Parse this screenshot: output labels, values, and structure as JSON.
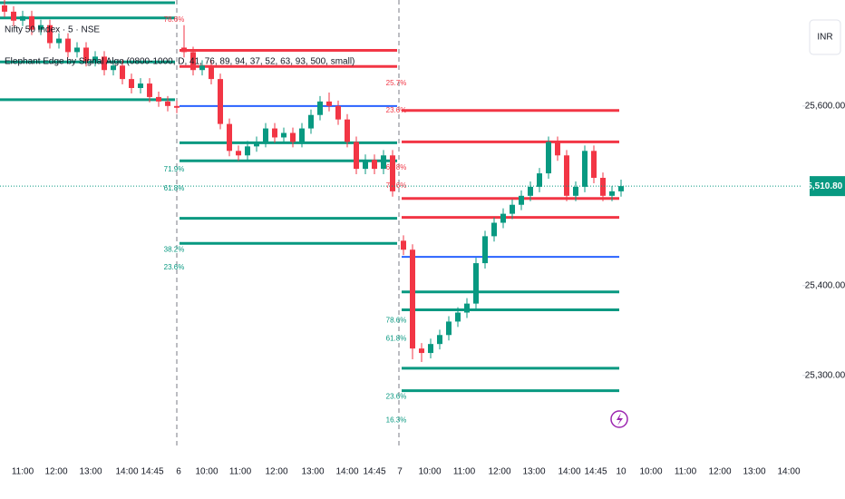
{
  "chart_data": {
    "type": "candlestick",
    "title": "Nifty 50 Index · 5 · NSE",
    "subtitle": "Elephant Edge by Signal Algo (0800-1000, D, 41, 76, 89, 94, 37, 52, 63, 93, 500, small)",
    "currency": "INR",
    "ylim": [
      25218,
      25718
    ],
    "yticks": [
      {
        "value": 25600,
        "label": "25,600.00"
      },
      {
        "value": 25400,
        "label": "25,400.00"
      },
      {
        "value": 25300,
        "label": "25,300.00"
      }
    ],
    "last_price": {
      "value": 25510.8,
      "label": "25,510.80"
    },
    "xticks": [
      "11:00",
      "12:00",
      "13:00",
      "14:00",
      "14:45",
      "6",
      "10:00",
      "11:00",
      "12:00",
      "13:00",
      "14:00",
      "14:45",
      "7",
      "10:00",
      "11:00",
      "12:00",
      "13:00",
      "14:00",
      "14:45",
      "10",
      "10:00",
      "11:00",
      "12:00",
      "13:00",
      "14:00"
    ],
    "colors": {
      "up": "#089981",
      "down": "#f23645",
      "red": "#f23645",
      "green": "#089981",
      "blue": "#2962ff"
    },
    "candles": [
      [
        [
          25712,
          25718,
          25699,
          25705
        ],
        [
          25705,
          25711,
          25689,
          25695
        ],
        [
          25695,
          25706,
          25689,
          25700
        ],
        [
          25700,
          25706,
          25679,
          25685
        ],
        [
          25685,
          25696,
          25679,
          25690
        ],
        [
          25690,
          25696,
          25664,
          25670
        ],
        [
          25670,
          25681,
          25664,
          25675
        ],
        [
          25675,
          25681,
          25654,
          25660
        ],
        [
          25660,
          25671,
          25654,
          25665
        ],
        [
          25665,
          25671,
          25644,
          25650
        ],
        [
          25650,
          25661,
          25644,
          25655
        ],
        [
          25655,
          25661,
          25634,
          25640
        ],
        [
          25640,
          25651,
          25634,
          25645
        ],
        [
          25645,
          25651,
          25624,
          25630
        ],
        [
          25630,
          25636,
          25614,
          25620
        ],
        [
          25620,
          25631,
          25614,
          25625
        ],
        [
          25625,
          25631,
          25604,
          25610
        ],
        [
          25610,
          25616,
          25599,
          25605
        ],
        [
          25605,
          25611,
          25594,
          25600
        ],
        [
          25600,
          25606,
          25592,
          25598
        ]
      ],
      [
        [
          25665,
          25690,
          25654,
          25660
        ],
        [
          25660,
          25666,
          25634,
          25640
        ],
        [
          25640,
          25651,
          25634,
          25645
        ],
        [
          25645,
          25651,
          25624,
          25630
        ],
        [
          25630,
          25636,
          25574,
          25580
        ],
        [
          25580,
          25586,
          25544,
          25550
        ],
        [
          25550,
          25556,
          25539,
          25545
        ],
        [
          25545,
          25561,
          25539,
          25555
        ],
        [
          25555,
          25566,
          25549,
          25560
        ],
        [
          25560,
          25581,
          25554,
          25575
        ],
        [
          25575,
          25581,
          25559,
          25565
        ],
        [
          25565,
          25576,
          25559,
          25570
        ],
        [
          25570,
          25576,
          25554,
          25560
        ],
        [
          25560,
          25581,
          25554,
          25575
        ],
        [
          25575,
          25596,
          25569,
          25590
        ],
        [
          25590,
          25611,
          25584,
          25605
        ],
        [
          25605,
          25615,
          25594,
          25600
        ],
        [
          25600,
          25606,
          25579,
          25585
        ],
        [
          25585,
          25591,
          25554,
          25560
        ],
        [
          25560,
          25566,
          25524,
          25530
        ],
        [
          25530,
          25546,
          25524,
          25540
        ],
        [
          25540,
          25546,
          25524,
          25530
        ],
        [
          25530,
          25551,
          25524,
          25545
        ],
        [
          25545,
          25551,
          25499,
          25505
        ]
      ],
      [
        [
          25450,
          25456,
          25434,
          25440
        ],
        [
          25440,
          25446,
          25318,
          25330
        ],
        [
          25330,
          25336,
          25315,
          25325
        ],
        [
          25325,
          25341,
          25319,
          25335
        ],
        [
          25335,
          25351,
          25329,
          25345
        ],
        [
          25345,
          25366,
          25339,
          25360
        ],
        [
          25360,
          25376,
          25354,
          25370
        ],
        [
          25370,
          25386,
          25364,
          25380
        ],
        [
          25380,
          25431,
          25374,
          25425
        ],
        [
          25425,
          25461,
          25419,
          25455
        ],
        [
          25455,
          25476,
          25449,
          25470
        ],
        [
          25470,
          25486,
          25464,
          25480
        ],
        [
          25480,
          25496,
          25474,
          25490
        ],
        [
          25490,
          25506,
          25484,
          25500
        ],
        [
          25500,
          25516,
          25494,
          25510
        ],
        [
          25510,
          25531,
          25504,
          25525
        ],
        [
          25525,
          25566,
          25519,
          25560
        ],
        [
          25560,
          25566,
          25539,
          25545
        ],
        [
          25545,
          25551,
          25494,
          25500
        ],
        [
          25500,
          25516,
          25494,
          25510
        ],
        [
          25510,
          25556,
          25504,
          25550
        ],
        [
          25550,
          25556,
          25514,
          25520
        ],
        [
          25520,
          25526,
          25494,
          25500
        ],
        [
          25500,
          25511,
          25494,
          25505
        ],
        [
          25505,
          25518,
          25499,
          25510.8
        ]
      ]
    ],
    "level_days": [
      {
        "red": [],
        "blue": [],
        "green": [
          25715,
          25698,
          25649,
          25607
        ],
        "labels": []
      },
      {
        "red": [
          25662,
          25644
        ],
        "blue": [
          25600
        ],
        "green": [
          25559,
          25539,
          25475,
          25447
        ],
        "labels": [
          {
            "value": 25696,
            "label": "78.6%",
            "color": "red"
          },
          {
            "value": 25529,
            "label": "71.9%",
            "color": "green"
          },
          {
            "value": 25508,
            "label": "61.8%",
            "color": "green"
          },
          {
            "value": 25440,
            "label": "38.2%",
            "color": "green"
          },
          {
            "value": 25420,
            "label": "23.6%",
            "color": "green"
          }
        ]
      },
      {
        "red": [
          25595,
          25560,
          25497,
          25476
        ],
        "blue": [
          25432
        ],
        "green": [
          25393,
          25373,
          25308,
          25283
        ],
        "labels": [
          {
            "value": 25625,
            "label": "25.7%",
            "color": "red"
          },
          {
            "value": 25595,
            "label": "23.6%",
            "color": "red"
          },
          {
            "value": 25531,
            "label": "61.8%",
            "color": "red"
          },
          {
            "value": 25511,
            "label": "78.6%",
            "color": "red"
          },
          {
            "value": 25361,
            "label": "78.6%",
            "color": "green"
          },
          {
            "value": 25341,
            "label": "61.8%",
            "color": "green"
          },
          {
            "value": 25276,
            "label": "23.6%",
            "color": "green"
          },
          {
            "value": 25250,
            "label": "16.3%",
            "color": "green"
          }
        ]
      }
    ]
  }
}
